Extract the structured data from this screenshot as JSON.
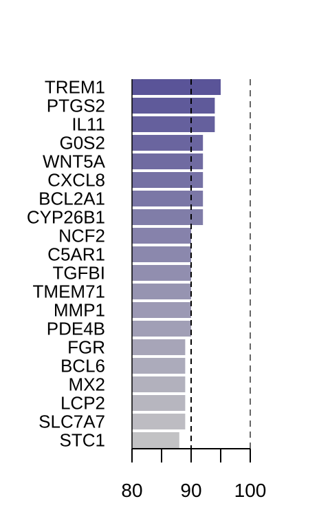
{
  "chart_data": {
    "type": "bar",
    "orientation": "horizontal",
    "title": "",
    "xlabel": "",
    "ylabel": "",
    "categories": [
      "TREM1",
      "PTGS2",
      "IL11",
      "G0S2",
      "WNT5A",
      "CXCL8",
      "BCL2A1",
      "CYP26B1",
      "NCF2",
      "C5AR1",
      "TGFBI",
      "TMEM71",
      "MMP1",
      "PDE4B",
      "FGR",
      "BCL6",
      "MX2",
      "LCP2",
      "SLC7A7",
      "STC1"
    ],
    "values": [
      95,
      94,
      94,
      92,
      92,
      92,
      92,
      92,
      90,
      90,
      90,
      90,
      90,
      90,
      89,
      89,
      89,
      89,
      89,
      88
    ],
    "xlim": [
      80,
      100
    ],
    "x_ticks": [
      80,
      85,
      90,
      95,
      100
    ],
    "x_tick_labels": [
      "80",
      "90",
      "100"
    ],
    "reference_lines": [
      90,
      100
    ],
    "grid": false,
    "legend": "none",
    "colors": {
      "top": "#5a5498",
      "bottom": "#c2c2c4",
      "axis": "#000000"
    }
  }
}
